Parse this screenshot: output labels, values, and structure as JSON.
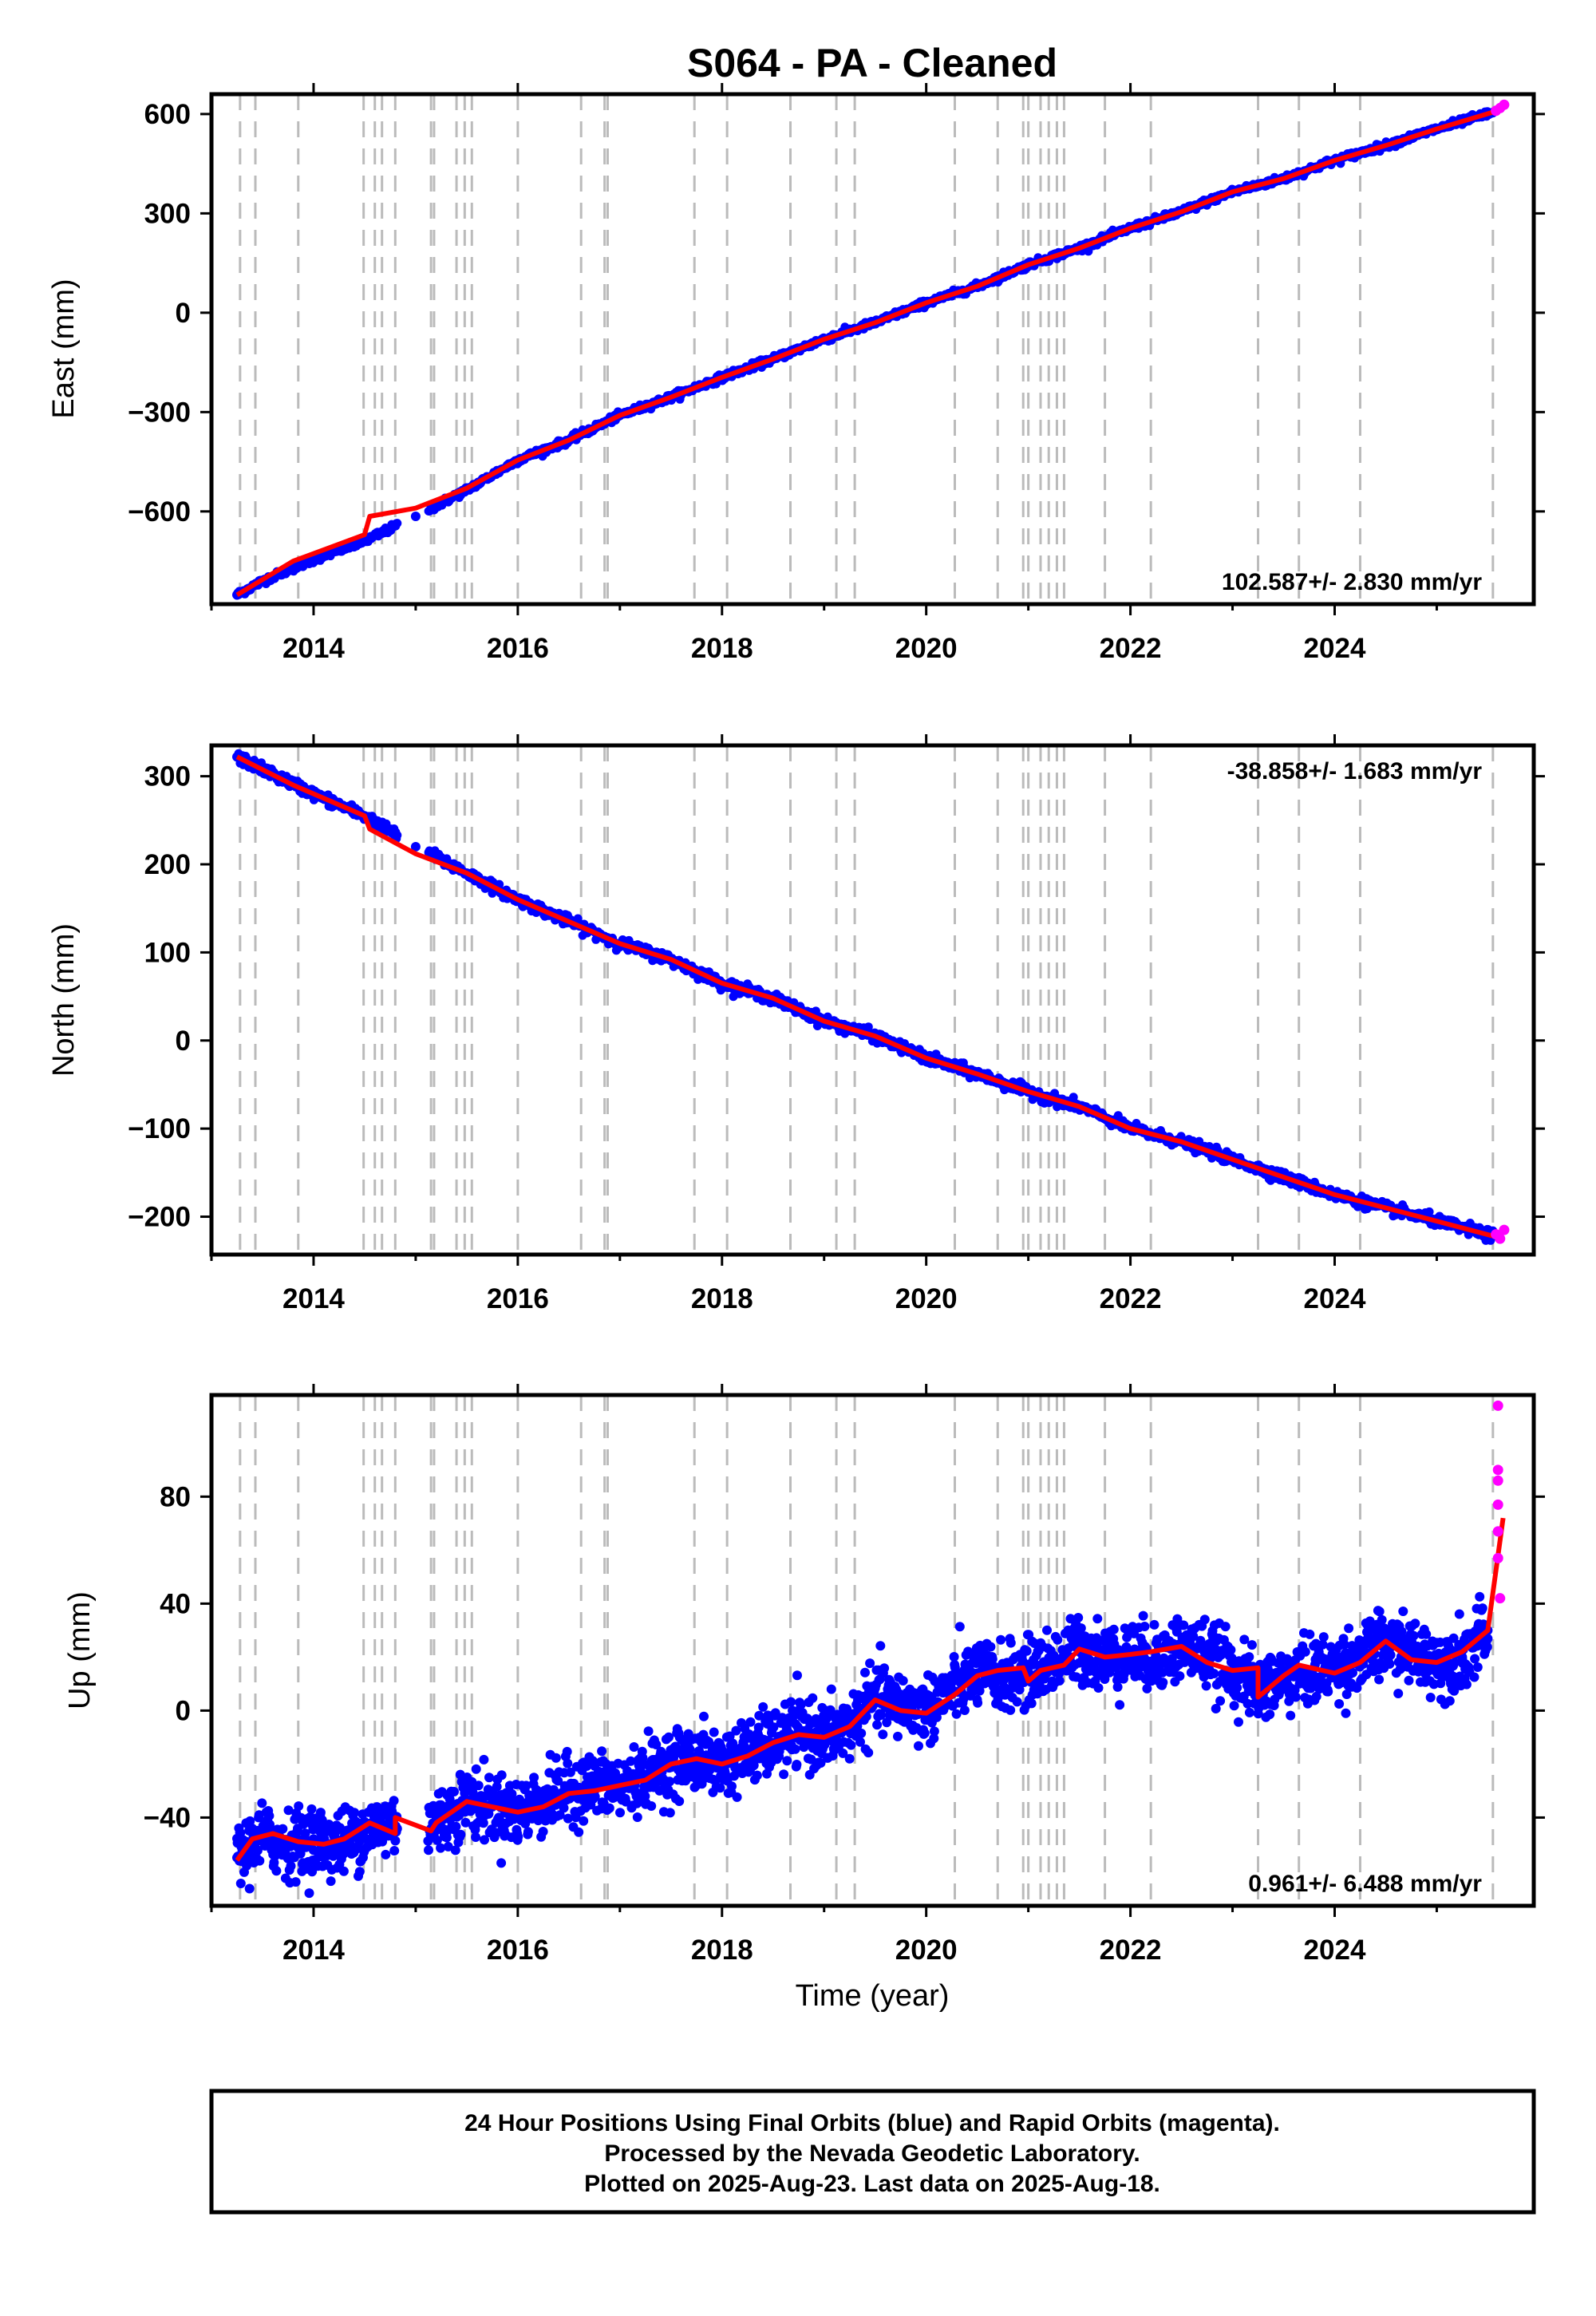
{
  "title": "S064  - PA - Cleaned",
  "colors": {
    "final": "#0000ff",
    "rapid": "#ff00ff",
    "model": "#ff0000",
    "steps": "#bbbbbb",
    "axes": "#000000"
  },
  "chart_data": [
    {
      "type": "scatter",
      "panel": "east",
      "ylabel": "East (mm)",
      "rate_label": "102.587+/- 2.830 mm/yr",
      "rate_position": "bottom-right",
      "xlim": [
        2013.0,
        2025.95
      ],
      "ylim": [
        -880,
        660
      ],
      "xticks": [
        2014,
        2016,
        2018,
        2020,
        2022,
        2024
      ],
      "yticks": [
        -600,
        -300,
        0,
        300,
        600
      ],
      "ytick_labels": [
        "−600",
        "−300",
        "0",
        "300",
        "600"
      ],
      "series": [
        {
          "kind": "final",
          "x": [
            2013.25,
            2013.5,
            2014.0,
            2014.5,
            2015.0,
            2015.5,
            2016.0,
            2016.5,
            2017.0,
            2017.5,
            2018.0,
            2018.5,
            2019.0,
            2019.5,
            2020.0,
            2020.5,
            2021.0,
            2021.5,
            2022.0,
            2022.5,
            2023.0,
            2023.5,
            2024.0,
            2024.5,
            2025.0,
            2025.55
          ],
          "y": [
            -852,
            -810,
            -745,
            -690,
            -615,
            -535,
            -445,
            -385,
            -310,
            -255,
            -195,
            -140,
            -80,
            -30,
            30,
            80,
            145,
            195,
            255,
            305,
            365,
            405,
            460,
            505,
            555,
            605
          ]
        },
        {
          "kind": "rapid",
          "x": [
            2025.58,
            2025.62,
            2025.66
          ],
          "y": [
            610,
            618,
            628
          ]
        }
      ],
      "model": {
        "x": [
          2013.25,
          2013.8,
          2014.5,
          2014.55,
          2015.0,
          2015.5,
          2016.0,
          2016.5,
          2017.0,
          2017.5,
          2018.0,
          2018.5,
          2019.0,
          2019.5,
          2020.0,
          2020.5,
          2021.0,
          2021.5,
          2022.0,
          2022.5,
          2023.0,
          2023.5,
          2024.0,
          2024.5,
          2025.0,
          2025.65
        ],
        "y": [
          -852,
          -750,
          -670,
          -615,
          -590,
          -530,
          -445,
          -385,
          -310,
          -255,
          -195,
          -140,
          -80,
          -30,
          30,
          80,
          145,
          195,
          255,
          305,
          365,
          405,
          460,
          505,
          555,
          615
        ]
      },
      "steps": [
        2013.28,
        2013.43,
        2013.85,
        2014.49,
        2014.6,
        2014.67,
        2014.8,
        2015.15,
        2015.18,
        2015.4,
        2015.48,
        2015.55,
        2016.0,
        2016.62,
        2016.85,
        2016.88,
        2017.73,
        2018.05,
        2018.67,
        2019.12,
        2019.3,
        2020.28,
        2020.7,
        2020.95,
        2021.0,
        2021.12,
        2021.2,
        2021.28,
        2021.35,
        2021.75,
        2022.2,
        2023.25,
        2023.65,
        2024.25,
        2025.55
      ]
    },
    {
      "type": "scatter",
      "panel": "north",
      "ylabel": "North (mm)",
      "rate_label": "-38.858+/- 1.683 mm/yr",
      "rate_position": "top-right",
      "xlim": [
        2013.0,
        2025.95
      ],
      "ylim": [
        -243,
        335
      ],
      "xticks": [
        2014,
        2016,
        2018,
        2020,
        2022,
        2024
      ],
      "yticks": [
        -200,
        -100,
        0,
        100,
        200,
        300
      ],
      "ytick_labels": [
        "−200",
        "−100",
        "0",
        "100",
        "200",
        "300"
      ],
      "series": [
        {
          "kind": "final",
          "x": [
            2013.25,
            2013.5,
            2014.0,
            2014.5,
            2015.0,
            2015.5,
            2016.0,
            2016.5,
            2017.0,
            2017.5,
            2018.0,
            2018.5,
            2019.0,
            2019.5,
            2020.0,
            2020.5,
            2021.0,
            2021.5,
            2022.0,
            2022.5,
            2023.0,
            2023.5,
            2024.0,
            2024.5,
            2025.0,
            2025.55
          ],
          "y": [
            322,
            308,
            280,
            255,
            220,
            190,
            160,
            135,
            110,
            92,
            65,
            48,
            22,
            5,
            -20,
            -38,
            -58,
            -75,
            -100,
            -115,
            -135,
            -155,
            -175,
            -190,
            -205,
            -222
          ]
        },
        {
          "kind": "rapid",
          "x": [
            2025.58,
            2025.62,
            2025.66
          ],
          "y": [
            -220,
            -225,
            -215
          ]
        }
      ],
      "model": {
        "x": [
          2013.25,
          2013.8,
          2014.5,
          2014.55,
          2015.0,
          2015.5,
          2016.0,
          2016.5,
          2017.0,
          2017.5,
          2018.0,
          2018.5,
          2019.0,
          2019.5,
          2020.0,
          2020.5,
          2021.0,
          2021.5,
          2022.0,
          2022.5,
          2023.0,
          2023.5,
          2024.0,
          2024.5,
          2025.0,
          2025.65
        ],
        "y": [
          322,
          290,
          255,
          240,
          212,
          190,
          160,
          135,
          110,
          92,
          65,
          48,
          22,
          5,
          -20,
          -38,
          -58,
          -75,
          -100,
          -115,
          -135,
          -155,
          -175,
          -190,
          -205,
          -225
        ]
      },
      "steps": [
        2013.28,
        2013.43,
        2013.85,
        2014.49,
        2014.6,
        2014.67,
        2014.8,
        2015.15,
        2015.18,
        2015.4,
        2015.48,
        2015.55,
        2016.0,
        2016.62,
        2016.85,
        2016.88,
        2017.73,
        2018.05,
        2018.67,
        2019.12,
        2019.3,
        2020.28,
        2020.7,
        2020.95,
        2021.0,
        2021.12,
        2021.2,
        2021.28,
        2021.35,
        2021.75,
        2022.2,
        2023.25,
        2023.65,
        2024.25,
        2025.55
      ]
    },
    {
      "type": "scatter",
      "panel": "up",
      "ylabel": "Up (mm)",
      "xlabel": "Time (year)",
      "rate_label": "0.961+/- 6.488 mm/yr",
      "rate_position": "bottom-right",
      "xlim": [
        2013.0,
        2025.95
      ],
      "ylim": [
        -73,
        118
      ],
      "xticks": [
        2014,
        2016,
        2018,
        2020,
        2022,
        2024
      ],
      "yticks": [
        -40,
        0,
        40,
        80
      ],
      "ytick_labels": [
        "−40",
        "0",
        "40",
        "80"
      ],
      "series": [
        {
          "kind": "final",
          "x": [
            2013.25,
            2013.5,
            2013.75,
            2014.0,
            2014.25,
            2014.5,
            2014.75,
            2015.2,
            2015.5,
            2015.75,
            2016.0,
            2016.25,
            2016.5,
            2016.75,
            2017.0,
            2017.25,
            2017.5,
            2017.75,
            2018.0,
            2018.25,
            2018.5,
            2018.75,
            2019.0,
            2019.25,
            2019.5,
            2019.75,
            2020.0,
            2020.25,
            2020.5,
            2020.75,
            2021.0,
            2021.25,
            2021.5,
            2021.75,
            2022.0,
            2022.25,
            2022.5,
            2022.75,
            2023.0,
            2023.25,
            2023.5,
            2023.75,
            2024.0,
            2024.25,
            2024.5,
            2024.75,
            2025.0,
            2025.25,
            2025.5
          ],
          "y": [
            -55,
            -47,
            -50,
            -48,
            -50,
            -45,
            -42,
            -42,
            -34,
            -36,
            -38,
            -34,
            -30,
            -28,
            -29,
            -24,
            -20,
            -18,
            -20,
            -16,
            -12,
            -8,
            -10,
            -6,
            5,
            2,
            0,
            8,
            14,
            12,
            14,
            18,
            23,
            20,
            21,
            19,
            24,
            21,
            15,
            8,
            12,
            14,
            16,
            20,
            25,
            22,
            18,
            20,
            30
          ]
        },
        {
          "kind": "rapid",
          "x": [
            2025.6,
            2025.6,
            2025.6,
            2025.6,
            2025.6,
            2025.6,
            2025.62
          ],
          "y": [
            114,
            90,
            86,
            77,
            67,
            57,
            42
          ]
        }
      ],
      "model": {
        "x": [
          2013.25,
          2013.4,
          2013.6,
          2013.85,
          2014.1,
          2014.3,
          2014.55,
          2014.8,
          2014.8,
          2015.15,
          2015.2,
          2015.5,
          2015.75,
          2016.0,
          2016.25,
          2016.5,
          2016.75,
          2017.0,
          2017.25,
          2017.5,
          2017.75,
          2018.0,
          2018.25,
          2018.5,
          2018.75,
          2019.0,
          2019.25,
          2019.5,
          2019.75,
          2020.0,
          2020.28,
          2020.5,
          2020.7,
          2020.95,
          2021.0,
          2021.12,
          2021.35,
          2021.5,
          2021.75,
          2022.0,
          2022.2,
          2022.5,
          2022.75,
          2023.0,
          2023.25,
          2023.25,
          2023.5,
          2023.65,
          2024.0,
          2024.25,
          2024.5,
          2024.75,
          2025.0,
          2025.25,
          2025.5,
          2025.65
        ],
        "y": [
          -56,
          -48,
          -46,
          -49,
          -50,
          -48,
          -42,
          -46,
          -40,
          -45,
          -42,
          -34,
          -36,
          -38,
          -36,
          -31,
          -30,
          -28,
          -26,
          -20,
          -18,
          -20,
          -17,
          -12,
          -9,
          -10,
          -6,
          4,
          0,
          -1,
          6,
          13,
          15,
          16,
          11,
          15,
          17,
          23,
          20,
          21,
          22,
          24,
          18,
          15,
          16,
          5,
          13,
          17,
          14,
          18,
          26,
          19,
          18,
          22,
          30,
          72
        ]
      },
      "steps": [
        2013.28,
        2013.43,
        2013.85,
        2014.49,
        2014.6,
        2014.67,
        2014.8,
        2015.15,
        2015.18,
        2015.4,
        2015.48,
        2015.55,
        2016.0,
        2016.62,
        2016.85,
        2016.88,
        2017.73,
        2018.05,
        2018.67,
        2019.12,
        2019.3,
        2020.28,
        2020.7,
        2020.95,
        2021.0,
        2021.12,
        2021.2,
        2021.28,
        2021.35,
        2021.75,
        2022.2,
        2023.25,
        2023.65,
        2024.25,
        2025.55
      ]
    }
  ],
  "footer": {
    "line1": "24 Hour Positions Using Final Orbits (blue) and Rapid Orbits (magenta).",
    "line2": "Processed by the Nevada Geodetic Laboratory.",
    "line3": "Plotted on 2025-Aug-23. Last data on 2025-Aug-18."
  }
}
